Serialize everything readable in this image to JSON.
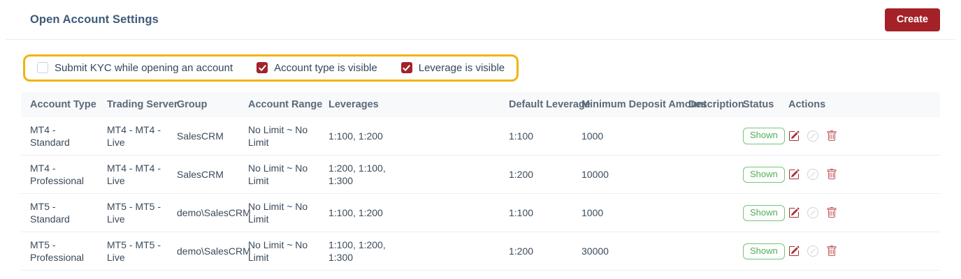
{
  "header": {
    "title": "Open Account Settings",
    "create_label": "Create"
  },
  "settings_bar": {
    "check_icon": "check-icon",
    "checkboxes": [
      {
        "name": "submit-kyc-checkbox",
        "label": "Submit KYC while opening an account",
        "checked": false
      },
      {
        "name": "account-type-visible-checkbox",
        "label": "Account type is visible",
        "checked": true
      },
      {
        "name": "leverage-visible-checkbox",
        "label": "Leverage is visible",
        "checked": true
      }
    ]
  },
  "table": {
    "columns": [
      "Account Type",
      "Trading Server",
      "Group",
      "Account Range",
      "Leverages",
      "Default Leverage",
      "Minimum Deposit Amount",
      "Description",
      "Status",
      "Actions"
    ],
    "rows": [
      {
        "account_type": "MT4 - Standard",
        "trading_server": "MT4 - MT4 - Live",
        "group": "SalesCRM",
        "account_range": "No Limit ~ No Limit",
        "leverages": "1:100, 1:200",
        "default_leverage": "1:100",
        "minimum_deposit_amount": "1000",
        "description": "",
        "status": "Shown"
      },
      {
        "account_type": "MT4 - Professional",
        "trading_server": "MT4 - MT4 - Live",
        "group": "SalesCRM",
        "account_range": "No Limit ~ No Limit",
        "leverages": "1:200, 1:100, 1:300",
        "default_leverage": "1:200",
        "minimum_deposit_amount": "10000",
        "description": "",
        "status": "Shown"
      },
      {
        "account_type": "MT5 - Standard",
        "trading_server": "MT5 - MT5 - Live",
        "group": "demo\\SalesCRM",
        "account_range": "No Limit ~ No Limit",
        "leverages": "1:100, 1:200",
        "default_leverage": "1:100",
        "minimum_deposit_amount": "1000",
        "description": "",
        "status": "Shown"
      },
      {
        "account_type": "MT5 - Professional",
        "trading_server": "MT5 - MT5 - Live",
        "group": "demo\\SalesCRM",
        "account_range": "No Limit ~ No Limit",
        "leverages": "1:100, 1:200, 1:300",
        "default_leverage": "1:200",
        "minimum_deposit_amount": "30000",
        "description": "",
        "status": "Shown"
      }
    ],
    "action_buttons": [
      {
        "name": "edit-button",
        "icon": "pencil-square-icon"
      },
      {
        "name": "disable-button",
        "icon": "slash-circle-icon"
      },
      {
        "name": "delete-button",
        "icon": "trash-icon"
      }
    ]
  },
  "colors": {
    "accent_red": "#a32127",
    "checkbox_red": "#a2242b",
    "highlight_yellow": "#f0b40f",
    "badge_green": "#4db056",
    "disabled_gray": "#ccd3d9",
    "title_blue": "#3d5a7a"
  }
}
